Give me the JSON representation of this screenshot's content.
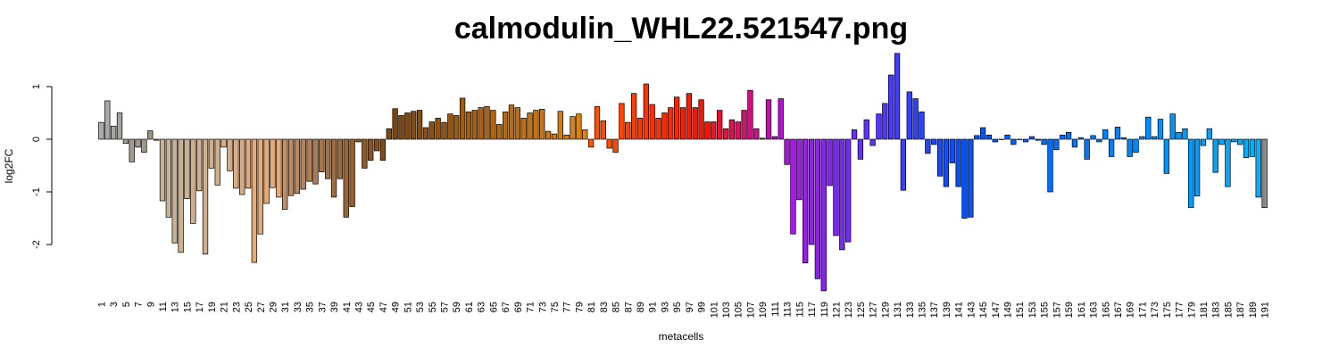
{
  "chart_data": {
    "type": "bar",
    "title": "calmodulin_WHL22.521547.png",
    "xlabel": "metacells",
    "ylabel": "log2FC",
    "ylim": [
      -2.9,
      1.65
    ],
    "yticks": [
      -2,
      -1,
      0,
      1
    ],
    "grid": false,
    "categories": [
      1,
      2,
      3,
      4,
      5,
      6,
      7,
      8,
      9,
      10,
      11,
      12,
      13,
      14,
      15,
      16,
      17,
      18,
      19,
      20,
      21,
      22,
      23,
      24,
      25,
      26,
      27,
      28,
      29,
      30,
      31,
      32,
      33,
      34,
      35,
      36,
      37,
      38,
      39,
      40,
      41,
      42,
      43,
      44,
      45,
      46,
      47,
      48,
      49,
      50,
      51,
      52,
      53,
      54,
      55,
      56,
      57,
      58,
      59,
      60,
      61,
      62,
      63,
      64,
      65,
      66,
      67,
      68,
      69,
      70,
      71,
      72,
      73,
      74,
      75,
      76,
      77,
      78,
      79,
      80,
      81,
      82,
      83,
      84,
      85,
      86,
      87,
      88,
      89,
      90,
      91,
      92,
      93,
      94,
      95,
      96,
      97,
      98,
      99,
      100,
      101,
      102,
      103,
      104,
      105,
      106,
      107,
      108,
      109,
      110,
      111,
      112,
      113,
      114,
      115,
      116,
      117,
      118,
      119,
      120,
      121,
      122,
      123,
      124,
      125,
      126,
      127,
      128,
      129,
      130,
      131,
      132,
      133,
      134,
      135,
      136,
      137,
      138,
      139,
      140,
      141,
      142,
      143,
      144,
      145,
      146,
      147,
      148,
      149,
      150,
      151,
      152,
      153,
      154,
      155,
      156,
      157,
      158,
      159,
      160,
      161,
      162,
      163,
      164,
      165,
      166,
      167,
      168,
      169,
      170,
      171,
      172,
      173,
      174,
      175,
      176,
      177,
      178,
      179,
      180,
      181,
      182,
      183,
      184,
      185,
      186,
      187,
      188,
      189,
      190,
      191
    ],
    "tick_labels": [
      "1",
      "3",
      "5",
      "7",
      "9",
      "11",
      "13",
      "15",
      "17",
      "19",
      "21",
      "23",
      "25",
      "27",
      "29",
      "31",
      "33",
      "35",
      "37",
      "39",
      "41",
      "43",
      "45",
      "47",
      "49",
      "51",
      "53",
      "55",
      "57",
      "59",
      "61",
      "63",
      "65",
      "67",
      "69",
      "71",
      "73",
      "75",
      "77",
      "79",
      "81",
      "83",
      "85",
      "87",
      "89",
      "91",
      "93",
      "95",
      "97",
      "99",
      "101",
      "103",
      "105",
      "107",
      "109",
      "111",
      "113",
      "115",
      "117",
      "119",
      "121",
      "123",
      "125",
      "127",
      "129",
      "131",
      "133",
      "135",
      "137",
      "139",
      "141",
      "143",
      "145",
      "147",
      "149",
      "151",
      "153",
      "155",
      "157",
      "159",
      "161",
      "163",
      "165",
      "167",
      "169",
      "171",
      "173",
      "175",
      "177",
      "179",
      "181",
      "183",
      "185",
      "187",
      "189",
      "191"
    ],
    "values": [
      0.32,
      0.73,
      0.25,
      0.5,
      -0.08,
      -0.43,
      -0.15,
      -0.25,
      0.16,
      -0.02,
      -1.17,
      -1.48,
      -1.97,
      -2.15,
      -1.13,
      -1.6,
      -0.98,
      -2.18,
      -0.55,
      -0.87,
      -0.15,
      -0.6,
      -0.93,
      -1.05,
      -0.93,
      -2.34,
      -1.8,
      -1.22,
      -0.92,
      -1.1,
      -1.33,
      -1.07,
      -1.03,
      -0.95,
      -0.8,
      -0.85,
      -0.62,
      -0.75,
      -1.1,
      -0.75,
      -1.48,
      -1.28,
      -0.05,
      -0.55,
      -0.4,
      -0.22,
      -0.4,
      0.2,
      0.58,
      0.45,
      0.5,
      0.53,
      0.55,
      0.22,
      0.33,
      0.4,
      0.32,
      0.48,
      0.45,
      0.78,
      0.52,
      0.55,
      0.6,
      0.62,
      0.55,
      0.28,
      0.52,
      0.65,
      0.6,
      0.4,
      0.5,
      0.55,
      0.57,
      0.15,
      0.1,
      0.53,
      0.08,
      0.43,
      0.48,
      0.18,
      -0.15,
      0.62,
      0.35,
      -0.17,
      -0.25,
      0.68,
      0.32,
      0.87,
      0.4,
      1.05,
      0.66,
      0.4,
      0.5,
      0.6,
      0.8,
      0.6,
      0.87,
      0.6,
      0.75,
      0.33,
      0.33,
      0.55,
      0.2,
      0.37,
      0.33,
      0.55,
      0.93,
      0.2,
      0.02,
      0.75,
      0.05,
      0.77,
      -0.48,
      -1.8,
      -1.15,
      -2.35,
      -2.0,
      -2.65,
      -2.88,
      -0.88,
      -1.83,
      -2.1,
      -1.95,
      0.18,
      -0.38,
      0.37,
      -0.12,
      0.48,
      0.68,
      1.22,
      1.63,
      -0.97,
      0.9,
      0.77,
      0.52,
      -0.27,
      -0.1,
      -0.7,
      -0.9,
      -0.45,
      -0.9,
      -1.5,
      -1.48,
      0.07,
      0.22,
      0.08,
      -0.05,
      0.0,
      0.08,
      -0.1,
      0.0,
      -0.05,
      0.05,
      -0.02,
      -0.1,
      -1.0,
      -0.2,
      0.08,
      0.13,
      -0.15,
      0.03,
      -0.38,
      0.07,
      -0.05,
      0.18,
      -0.33,
      0.23,
      0.03,
      -0.33,
      -0.25,
      0.05,
      0.42,
      0.05,
      0.38,
      -0.65,
      0.48,
      0.13,
      0.2,
      -1.3,
      -1.08,
      -0.12,
      0.2,
      -0.63,
      -0.1,
      -0.9,
      -0.05,
      -0.1,
      -0.35,
      -0.33,
      -1.1,
      -1.3
    ],
    "colors": [
      "#ababab",
      "#a9a8a6",
      "#a7a5a1",
      "#a5a29c",
      "#a39f97",
      "#a29c92",
      "#a0998e",
      "#9e9689",
      "#9c9384",
      "#9a907f",
      "#c3b29a",
      "#c5b298",
      "#c7b196",
      "#c9b194",
      "#cbb092",
      "#cdb090",
      "#cfaf8e",
      "#d1af8c",
      "#d3ae8a",
      "#d5ae88",
      "#d7ad86",
      "#d9ad84",
      "#dbac82",
      "#ddac80",
      "#dfab7e",
      "#e1ab7c",
      "#e3aa7a",
      "#e5aa78",
      "#e7a976",
      "#e9a974",
      "#c19068",
      "#bd8c63",
      "#b9875e",
      "#b58359",
      "#b17f54",
      "#ad7b4f",
      "#a9764a",
      "#a57245",
      "#a16e40",
      "#9d6a3b",
      "#996536",
      "#956131",
      "#915d2c",
      "#8d5927",
      "#895422",
      "#85501d",
      "#814c18",
      "#7d4813",
      "#7b4511",
      "#7e4711",
      "#814911",
      "#854b11",
      "#884d11",
      "#8b4f11",
      "#8f5111",
      "#925311",
      "#955511",
      "#995711",
      "#9c5911",
      "#9f5b11",
      "#a35d11",
      "#a65f11",
      "#a96111",
      "#ad6311",
      "#b06511",
      "#b36711",
      "#b76911",
      "#ba6b11",
      "#bd6d11",
      "#c16f11",
      "#c47111",
      "#c77311",
      "#cb7511",
      "#ce7711",
      "#d17911",
      "#d57b11",
      "#d87d11",
      "#db7f11",
      "#df8111",
      "#e28311",
      "#ff5500",
      "#ff5200",
      "#ff4e00",
      "#ff4a00",
      "#ff4700",
      "#ff4300",
      "#ff3f00",
      "#ff3c00",
      "#ff3800",
      "#ff3400",
      "#ff3100",
      "#ff2d00",
      "#ff2900",
      "#ff2600",
      "#ff2200",
      "#ff1e00",
      "#ff1b00",
      "#ff1700",
      "#ff1300",
      "#ff1000",
      "#f5101f",
      "#ef1030",
      "#e91040",
      "#e31050",
      "#dd1060",
      "#d71070",
      "#d11080",
      "#cb1090",
      "#c510a0",
      "#bf10b0",
      "#b910c0",
      "#b310d0",
      "#ad10e0",
      "#a719e6",
      "#a11be8",
      "#9b1dea",
      "#951fec",
      "#8f21ee",
      "#8923f0",
      "#8325f2",
      "#7d27f4",
      "#7729f6",
      "#712bf8",
      "#6b2dfa",
      "#652ffc",
      "#5f31fe",
      "#5933ff",
      "#5335ff",
      "#4d37ff",
      "#4739ff",
      "#413bff",
      "#3b3dff",
      "#353fff",
      "#2f41ff",
      "#2943ff",
      "#2345ff",
      "#1d47ff",
      "#1749ff",
      "#114bff",
      "#0b4dff",
      "#054fff",
      "#0051ff",
      "#0053ff",
      "#0055ff",
      "#0057ff",
      "#0059ff",
      "#005bff",
      "#005dff",
      "#005fff",
      "#0061ff",
      "#0063ff",
      "#0065ff",
      "#0067ff",
      "#0069ff",
      "#006bff",
      "#006dff",
      "#006fff",
      "#0071ff",
      "#0073ff",
      "#0075ff",
      "#0077ff",
      "#0079ff",
      "#007bff",
      "#007dff",
      "#007fff",
      "#0081ff",
      "#0083ff",
      "#0085ff",
      "#0087ff",
      "#0089ff",
      "#008bff",
      "#008dff",
      "#008fff",
      "#0091ff",
      "#0093ff",
      "#0095ff",
      "#0097ff",
      "#0099ff",
      "#009bff",
      "#009dff",
      "#009fff",
      "#00a1ff",
      "#00a3ff",
      "#00a5ff",
      "#00a7ff",
      "#00a9ff",
      "#00abff",
      "#00adff",
      "#00afff",
      "#00b1ff"
    ]
  }
}
